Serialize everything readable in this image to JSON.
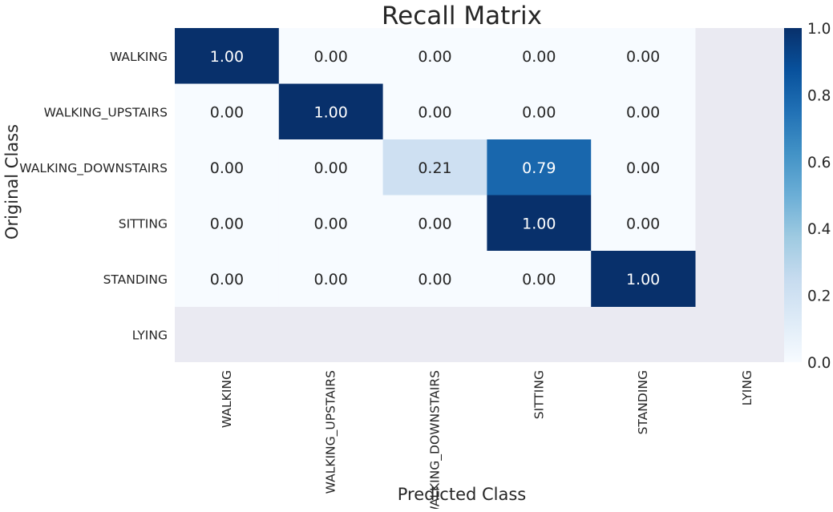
{
  "chart_data": {
    "type": "heatmap",
    "title": "Recall Matrix",
    "xlabel": "Predicted Class",
    "ylabel": "Original Class",
    "x_categories": [
      "WALKING",
      "WALKING_UPSTAIRS",
      "WALKING_DOWNSTAIRS",
      "SITTING",
      "STANDING",
      "LYING"
    ],
    "y_categories": [
      "WALKING",
      "WALKING_UPSTAIRS",
      "WALKING_DOWNSTAIRS",
      "SITTING",
      "STANDING",
      "LYING"
    ],
    "values": [
      [
        1.0,
        0.0,
        0.0,
        0.0,
        0.0,
        null
      ],
      [
        0.0,
        1.0,
        0.0,
        0.0,
        0.0,
        null
      ],
      [
        0.0,
        0.0,
        0.21,
        0.79,
        0.0,
        null
      ],
      [
        0.0,
        0.0,
        0.0,
        1.0,
        0.0,
        null
      ],
      [
        0.0,
        0.0,
        0.0,
        0.0,
        1.0,
        null
      ],
      [
        null,
        null,
        null,
        null,
        null,
        null
      ]
    ],
    "value_format": "0.00",
    "missing_color": "#eaeaf2",
    "colormap": "Blues",
    "colorbar": {
      "min": 0.0,
      "max": 1.0,
      "ticks": [
        "0.0",
        "0.2",
        "0.4",
        "0.6",
        "0.8",
        "1.0"
      ]
    }
  }
}
